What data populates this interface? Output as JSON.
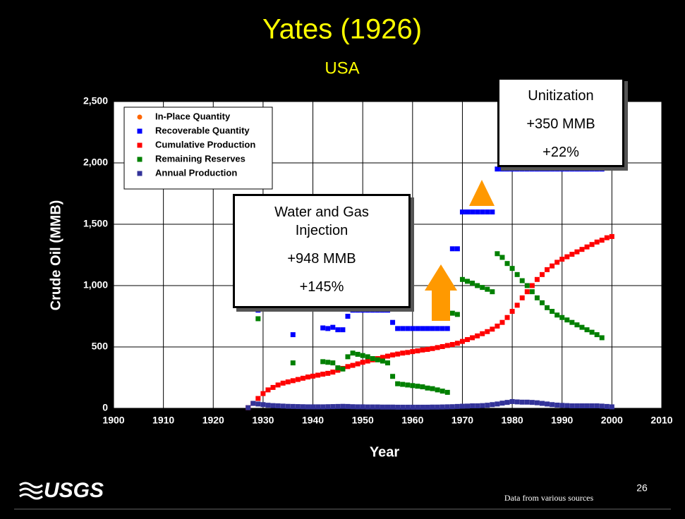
{
  "chart_data": {
    "type": "scatter",
    "title": "Yates (1926)",
    "subtitle": "USA",
    "x_label": "Year",
    "y_label": "Crude Oil (MMB)",
    "xlim": [
      1900,
      2010
    ],
    "xticks": [
      1900,
      1910,
      1920,
      1930,
      1940,
      1950,
      1960,
      1970,
      1980,
      1990,
      2000,
      2010
    ],
    "ylim": [
      0,
      2500
    ],
    "yticks": [
      0,
      500,
      {
        "value": 1000,
        "label": "1,000"
      },
      {
        "value": 1500,
        "label": "1,500"
      },
      {
        "value": 2000,
        "label": "2,000"
      },
      {
        "value": 2500,
        "label": "2,500"
      }
    ],
    "grid": true,
    "legend": "upper left",
    "x": [
      1927,
      1928,
      1929,
      1930,
      1931,
      1932,
      1933,
      1934,
      1935,
      1936,
      1937,
      1938,
      1939,
      1940,
      1941,
      1942,
      1943,
      1944,
      1945,
      1946,
      1947,
      1948,
      1949,
      1950,
      1951,
      1952,
      1953,
      1954,
      1955,
      1956,
      1957,
      1958,
      1959,
      1960,
      1961,
      1962,
      1963,
      1964,
      1965,
      1966,
      1967,
      1968,
      1969,
      1970,
      1971,
      1972,
      1973,
      1974,
      1975,
      1976,
      1977,
      1978,
      1979,
      1980,
      1981,
      1982,
      1983,
      1984,
      1985,
      1986,
      1987,
      1988,
      1989,
      1990,
      1991,
      1992,
      1993,
      1994,
      1995,
      1996,
      1997,
      1998,
      1999,
      2000
    ],
    "series": [
      {
        "name": "In-Place Quantity",
        "color": "#ff6600",
        "marker": "circle",
        "values": [
          null,
          null,
          null,
          null,
          null,
          null,
          null,
          null,
          null,
          null,
          null,
          null,
          null,
          null,
          null,
          null,
          null,
          null,
          null,
          null,
          null,
          null,
          null,
          null,
          null,
          null,
          null,
          null,
          null,
          null,
          null,
          null,
          null,
          null,
          null,
          null,
          null,
          null,
          null,
          null,
          null,
          null,
          null,
          null,
          null,
          null,
          null,
          null,
          null,
          null,
          null,
          null,
          null,
          null,
          null,
          null,
          null,
          null,
          null,
          null,
          null,
          null,
          null,
          null,
          null,
          null,
          null,
          null,
          null,
          null,
          null,
          null,
          null,
          null
        ]
      },
      {
        "name": "Recoverable Quantity",
        "color": "#0000ff",
        "marker": "square",
        "values": [
          null,
          null,
          800,
          null,
          null,
          null,
          null,
          null,
          null,
          600,
          null,
          null,
          null,
          null,
          null,
          655,
          650,
          660,
          640,
          640,
          750,
          800,
          800,
          800,
          800,
          800,
          800,
          800,
          800,
          700,
          650,
          650,
          650,
          650,
          650,
          650,
          650,
          650,
          650,
          650,
          650,
          1300,
          1300,
          1600,
          1600,
          1600,
          1600,
          1600,
          1600,
          1600,
          1950,
          1950,
          1950,
          1950,
          1950,
          1950,
          1950,
          1950,
          1950,
          1950,
          1950,
          1950,
          1950,
          1950,
          1950,
          1950,
          1950,
          1950,
          1950,
          1950,
          1950,
          1950,
          null,
          null
        ]
      },
      {
        "name": "Cumulative Production",
        "color": "#ff0000",
        "marker": "square",
        "values": [
          5,
          40,
          80,
          120,
          150,
          170,
          190,
          205,
          215,
          225,
          235,
          245,
          255,
          262,
          270,
          278,
          285,
          295,
          310,
          325,
          340,
          350,
          362,
          375,
          385,
          395,
          405,
          415,
          425,
          435,
          442,
          450,
          455,
          462,
          468,
          475,
          480,
          487,
          495,
          503,
          512,
          520,
          530,
          545,
          560,
          575,
          590,
          608,
          625,
          645,
          670,
          700,
          740,
          790,
          840,
          900,
          950,
          1000,
          1050,
          1090,
          1130,
          1160,
          1190,
          1215,
          1235,
          1255,
          1275,
          1295,
          1315,
          1335,
          1355,
          1370,
          1390,
          1400
        ]
      },
      {
        "name": "Remaining Reserves",
        "color": "#008000",
        "marker": "square",
        "values": [
          null,
          null,
          730,
          null,
          null,
          null,
          null,
          null,
          null,
          370,
          null,
          null,
          null,
          null,
          null,
          380,
          375,
          370,
          330,
          320,
          420,
          450,
          440,
          430,
          420,
          405,
          395,
          385,
          370,
          260,
          200,
          195,
          190,
          185,
          180,
          175,
          165,
          160,
          150,
          140,
          130,
          775,
          765,
          1050,
          1035,
          1020,
          1000,
          985,
          970,
          950,
          1260,
          1230,
          1180,
          1140,
          1090,
          1040,
          1000,
          950,
          900,
          860,
          820,
          790,
          760,
          740,
          720,
          700,
          680,
          660,
          640,
          620,
          600,
          575,
          null,
          null
        ]
      },
      {
        "name": "Annual Production",
        "color": "#333399",
        "marker": "square",
        "values": [
          5,
          40,
          35,
          30,
          25,
          22,
          20,
          18,
          16,
          15,
          14,
          13,
          12,
          12,
          12,
          12,
          13,
          14,
          15,
          16,
          15,
          13,
          12,
          12,
          11,
          11,
          11,
          10,
          10,
          10,
          9,
          9,
          9,
          9,
          9,
          9,
          9,
          10,
          10,
          11,
          12,
          13,
          15,
          17,
          18,
          20,
          20,
          22,
          25,
          30,
          35,
          42,
          48,
          55,
          52,
          50,
          50,
          48,
          45,
          40,
          35,
          30,
          26,
          24,
          22,
          20,
          20,
          20,
          20,
          20,
          20,
          18,
          15,
          12
        ]
      }
    ],
    "annotations": [
      {
        "lines": [
          "Water and Gas Injection",
          "+948 MMB",
          "+145%"
        ]
      },
      {
        "lines": [
          "Unitization",
          "+350 MMB",
          "+22%"
        ]
      }
    ]
  },
  "footer": {
    "logo": "USGS",
    "page_number": "26",
    "source": "Data from various sources"
  }
}
